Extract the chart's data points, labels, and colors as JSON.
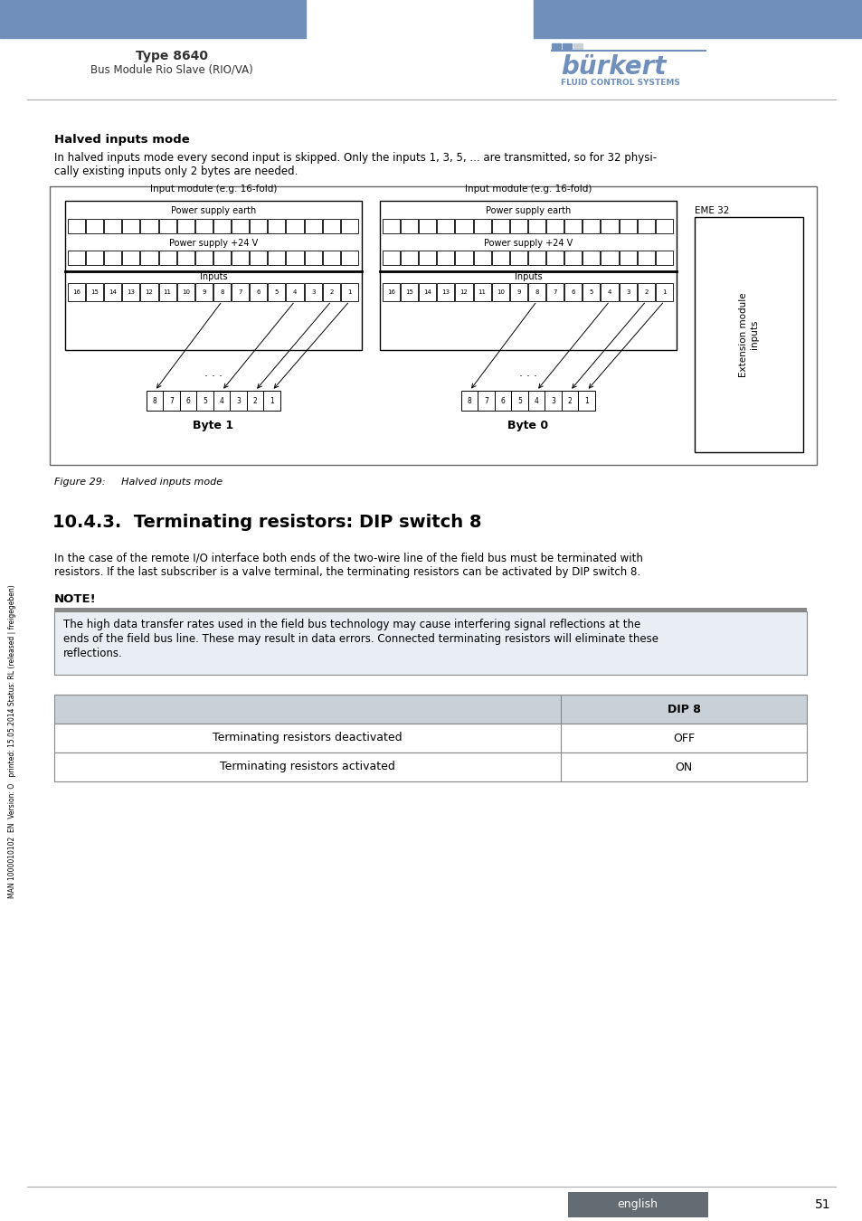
{
  "header_color": "#7090bb",
  "title_text": "Type 8640",
  "subtitle_text": "Bus Module Rio Slave (RIO/VA)",
  "burkert_text": "bürkert",
  "burkert_sub": "FLUID CONTROL SYSTEMS",
  "footer_tab_color": "#636b73",
  "footer_tab_text": "english",
  "page_number": "51",
  "side_text": "MAN 1000010102  EN  Version: O   printed: 15.05.2014 Status: RL (released | freigegeben)",
  "section_title": "Halved inputs mode",
  "section_body1": "In halved inputs mode every second input is skipped. Only the inputs 1, 3, 5, ... are transmitted, so for 32 physi-",
  "section_body2": "cally existing inputs only 2 bytes are needed.",
  "figure_caption": "Figure 29:     Halved inputs mode",
  "section2_title": "10.4.3.  Terminating resistors: DIP switch 8",
  "section2_body1": "In the case of the remote I/O interface both ends of the two-wire line of the field bus must be terminated with",
  "section2_body2": "resistors. If the last subscriber is a valve terminal, the terminating resistors can be activated by DIP switch 8.",
  "note_title": "NOTE!",
  "note_body1": "The high data transfer rates used in the field bus technology may cause interfering signal reflections at the",
  "note_body2": "ends of the field bus line. These may result in data errors. Connected terminating resistors will eliminate these",
  "note_body3": "reflections.",
  "table_header_col2": "DIP 8",
  "table_row1_col1": "Terminating resistors deactivated",
  "table_row1_col2": "OFF",
  "table_row2_col1": "Terminating resistors activated",
  "table_row2_col2": "ON",
  "note_bg_color": "#e8eef4",
  "note_border_color": "#888888",
  "table_header_bg": "#c8d0d8",
  "note_title_bar_color": "#888888"
}
